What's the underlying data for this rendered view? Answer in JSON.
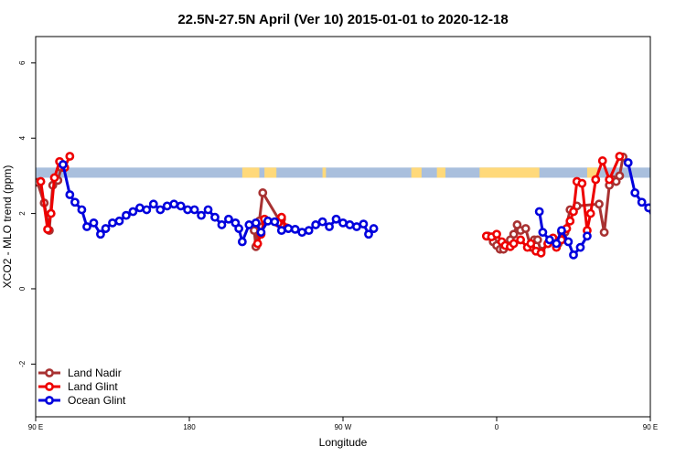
{
  "chart_data": {
    "type": "line",
    "title": "22.5N-27.5N April (Ver 10)   2015-01-01 to 2020-12-18",
    "xlabel": "Longitude",
    "ylabel": "XCO2 - MLO trend (ppm)",
    "xlim": [
      90,
      450
    ],
    "ylim": [
      -3.4,
      6.7
    ],
    "x_ticks": [
      {
        "value": 90,
        "label": "90 E"
      },
      {
        "value": 180,
        "label": "180"
      },
      {
        "value": 270,
        "label": "90 W"
      },
      {
        "value": 360,
        "label": "0"
      },
      {
        "value": 450,
        "label": "90 E"
      },
      {
        "value": 540,
        "label": "180"
      }
    ],
    "y_ticks": [
      -2,
      0,
      2,
      4,
      6
    ],
    "grid": false,
    "legend_position": "bottom-left",
    "land_band": {
      "y_range": [
        2.95,
        3.22
      ],
      "ocean_color": "#a9bfdd",
      "land_color": "#ffd97a",
      "land_segments": [
        [
          211,
          221
        ],
        [
          224,
          231
        ],
        [
          258,
          260
        ],
        [
          310,
          316
        ],
        [
          325,
          330
        ],
        [
          350,
          385
        ],
        [
          413,
          419
        ],
        [
          452,
          484
        ]
      ]
    },
    "series": [
      {
        "name": "Land Nadir",
        "color": "#a83232",
        "points": [
          [
            91,
            2.83
          ],
          [
            95,
            2.28
          ],
          [
            98,
            1.55
          ],
          [
            100,
            2.75
          ],
          [
            103,
            2.88
          ],
          [
            105,
            3.22
          ],
          [
            218,
            1.55
          ],
          [
            219,
            1.12
          ],
          [
            221,
            1.8
          ],
          [
            223,
            2.55
          ],
          [
            233,
            1.8
          ],
          [
            234,
            1.85
          ],
          [
            235,
            1.65
          ],
          [
            355,
            1.4
          ],
          [
            358,
            1.25
          ],
          [
            360,
            1.15
          ],
          [
            362,
            1.05
          ],
          [
            364,
            1.05
          ],
          [
            368,
            1.3
          ],
          [
            370,
            1.45
          ],
          [
            372,
            1.7
          ],
          [
            374,
            1.55
          ],
          [
            377,
            1.6
          ],
          [
            380,
            1.1
          ],
          [
            382,
            1.3
          ],
          [
            384,
            1.3
          ],
          [
            386,
            1.0
          ],
          [
            390,
            1.2
          ],
          [
            392,
            1.3
          ],
          [
            394,
            1.3
          ],
          [
            396,
            1.2
          ],
          [
            398,
            1.5
          ],
          [
            400,
            1.5
          ],
          [
            403,
            2.1
          ],
          [
            407,
            2.2
          ],
          [
            420,
            2.25
          ],
          [
            423,
            1.5
          ],
          [
            426,
            2.75
          ],
          [
            428,
            2.9
          ],
          [
            430,
            2.85
          ],
          [
            432,
            3.0
          ],
          [
            434,
            3.5
          ]
        ]
      },
      {
        "name": "Land Glint",
        "color": "#ee0000",
        "points": [
          [
            93,
            2.85
          ],
          [
            97,
            1.58
          ],
          [
            99,
            2.0
          ],
          [
            101,
            2.95
          ],
          [
            104,
            3.38
          ],
          [
            107,
            3.22
          ],
          [
            110,
            3.52
          ],
          [
            220,
            1.2
          ],
          [
            222,
            1.45
          ],
          [
            224,
            1.85
          ],
          [
            232,
            1.75
          ],
          [
            234,
            1.9
          ],
          [
            237,
            1.62
          ],
          [
            354,
            1.4
          ],
          [
            357,
            1.38
          ],
          [
            360,
            1.45
          ],
          [
            363,
            1.25
          ],
          [
            365,
            1.15
          ],
          [
            368,
            1.12
          ],
          [
            370,
            1.2
          ],
          [
            374,
            1.3
          ],
          [
            378,
            1.1
          ],
          [
            380,
            1.2
          ],
          [
            383,
            1.0
          ],
          [
            386,
            0.95
          ],
          [
            390,
            1.2
          ],
          [
            393,
            1.35
          ],
          [
            395,
            1.1
          ],
          [
            398,
            1.3
          ],
          [
            401,
            1.6
          ],
          [
            403,
            1.8
          ],
          [
            405,
            2.05
          ],
          [
            407,
            2.85
          ],
          [
            410,
            2.8
          ],
          [
            413,
            1.55
          ],
          [
            415,
            2.0
          ],
          [
            418,
            2.9
          ],
          [
            422,
            3.4
          ],
          [
            426,
            2.9
          ],
          [
            432,
            3.52
          ]
        ]
      },
      {
        "name": "Ocean Glint",
        "color": "#0000dd",
        "points": [
          [
            106,
            3.3
          ],
          [
            110,
            2.5
          ],
          [
            113,
            2.3
          ],
          [
            117,
            2.1
          ],
          [
            120,
            1.65
          ],
          [
            124,
            1.75
          ],
          [
            128,
            1.45
          ],
          [
            131,
            1.6
          ],
          [
            135,
            1.75
          ],
          [
            139,
            1.8
          ],
          [
            143,
            1.95
          ],
          [
            147,
            2.05
          ],
          [
            151,
            2.15
          ],
          [
            155,
            2.1
          ],
          [
            159,
            2.25
          ],
          [
            163,
            2.1
          ],
          [
            167,
            2.2
          ],
          [
            171,
            2.25
          ],
          [
            175,
            2.2
          ],
          [
            179,
            2.1
          ],
          [
            183,
            2.1
          ],
          [
            187,
            1.95
          ],
          [
            191,
            2.1
          ],
          [
            195,
            1.9
          ],
          [
            199,
            1.7
          ],
          [
            203,
            1.85
          ],
          [
            207,
            1.75
          ],
          [
            209,
            1.6
          ],
          [
            211,
            1.25
          ],
          [
            215,
            1.7
          ],
          [
            219,
            1.75
          ],
          [
            222,
            1.5
          ],
          [
            226,
            1.8
          ],
          [
            230,
            1.78
          ],
          [
            234,
            1.55
          ],
          [
            238,
            1.6
          ],
          [
            242,
            1.58
          ],
          [
            246,
            1.5
          ],
          [
            250,
            1.55
          ],
          [
            254,
            1.7
          ],
          [
            258,
            1.78
          ],
          [
            262,
            1.65
          ],
          [
            266,
            1.85
          ],
          [
            270,
            1.75
          ],
          [
            274,
            1.7
          ],
          [
            278,
            1.65
          ],
          [
            282,
            1.72
          ],
          [
            285,
            1.45
          ],
          [
            288,
            1.6
          ],
          [
            385,
            2.05
          ],
          [
            387,
            1.5
          ],
          [
            391,
            1.3
          ],
          [
            395,
            1.2
          ],
          [
            398,
            1.55
          ],
          [
            402,
            1.25
          ],
          [
            405,
            0.9
          ],
          [
            409,
            1.1
          ],
          [
            413,
            1.4
          ],
          [
            437,
            3.35
          ],
          [
            441,
            2.55
          ],
          [
            445,
            2.3
          ],
          [
            449,
            2.15
          ],
          [
            453,
            1.7
          ],
          [
            457,
            1.75
          ],
          [
            461,
            1.5
          ],
          [
            465,
            1.6
          ],
          [
            469,
            1.75
          ],
          [
            473,
            1.8
          ],
          [
            477,
            1.95
          ],
          [
            481,
            2.05
          ],
          [
            485,
            2.15
          ]
        ]
      }
    ]
  }
}
